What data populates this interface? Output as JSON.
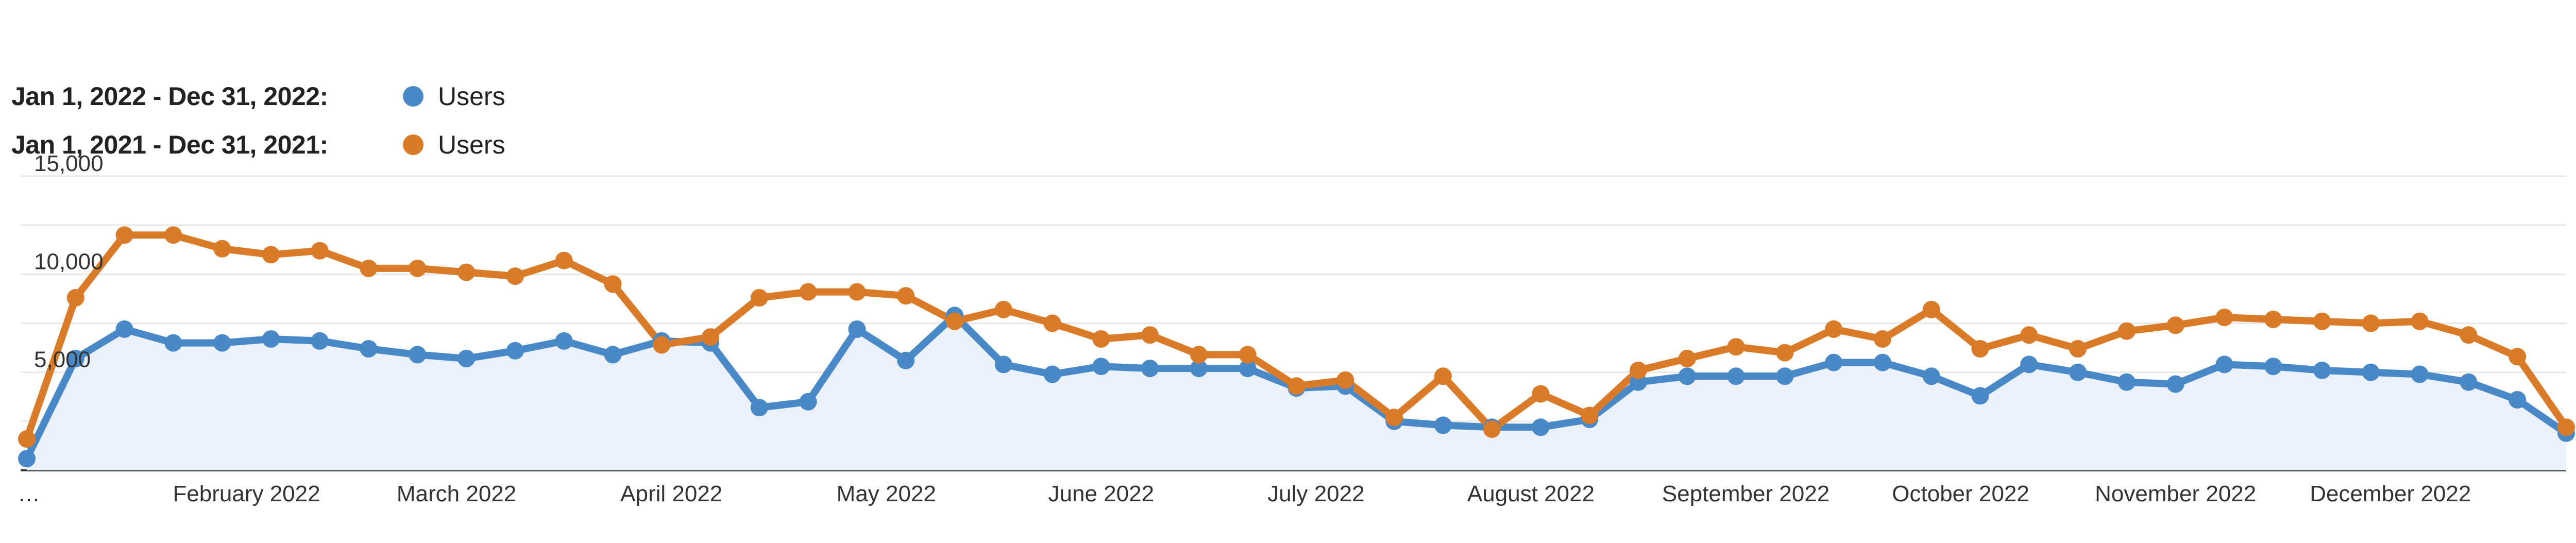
{
  "legend": [
    {
      "range": "Jan 1, 2022 - Dec 31, 2022:",
      "label": "Users",
      "color": "#4a89c8"
    },
    {
      "range": "Jan 1, 2021 - Dec 31, 2021:",
      "label": "Users",
      "color": "#d97b28"
    }
  ],
  "chart_data": {
    "type": "area",
    "title": "",
    "xlabel": "",
    "ylabel": "",
    "ylim": [
      0,
      15000
    ],
    "yticks": [
      {
        "value": 15000,
        "label": "15,000"
      },
      {
        "value": 10000,
        "label": "10,000"
      },
      {
        "value": 5000,
        "label": "5,000"
      }
    ],
    "xtick_labels": [
      {
        "index": 0,
        "label": "…"
      },
      {
        "index": 4.5,
        "label": "February 2022"
      },
      {
        "index": 8.8,
        "label": "March 2022"
      },
      {
        "index": 13.2,
        "label": "April 2022"
      },
      {
        "index": 17.6,
        "label": "May 2022"
      },
      {
        "index": 22,
        "label": "June 2022"
      },
      {
        "index": 26.4,
        "label": "July 2022"
      },
      {
        "index": 30.8,
        "label": "August 2022"
      },
      {
        "index": 35.2,
        "label": "September 2022"
      },
      {
        "index": 39.6,
        "label": "October 2022"
      },
      {
        "index": 44,
        "label": "November 2022"
      },
      {
        "index": 48.4,
        "label": "December 2022"
      }
    ],
    "grid": true,
    "legend_position": "top-left",
    "series": [
      {
        "name": "Users",
        "period": "Jan 1, 2022 - Dec 31, 2022",
        "color": "#4a89c8",
        "area_fill": "#eaf1fa",
        "values": [
          600,
          5700,
          7200,
          6500,
          6500,
          6700,
          6600,
          6200,
          5900,
          5700,
          6100,
          6600,
          5900,
          6600,
          6500,
          3200,
          3500,
          7200,
          5600,
          7900,
          5400,
          4900,
          5300,
          5200,
          5200,
          5200,
          4200,
          4300,
          2500,
          2300,
          2200,
          2200,
          2600,
          4500,
          4800,
          4800,
          4800,
          5500,
          5500,
          4800,
          3800,
          5400,
          5000,
          4500,
          4400,
          5400,
          5300,
          5100,
          5000,
          4900,
          4500,
          3600,
          1900
        ]
      },
      {
        "name": "Users",
        "period": "Jan 1, 2021 - Dec 31, 2021",
        "color": "#d97b28",
        "values": [
          1600,
          8800,
          12000,
          12000,
          11300,
          11000,
          11200,
          10300,
          10300,
          10100,
          9900,
          10700,
          9500,
          6400,
          6800,
          8800,
          9100,
          9100,
          8900,
          7600,
          8200,
          7500,
          6700,
          6900,
          5900,
          5900,
          4300,
          4600,
          2700,
          4800,
          2100,
          3900,
          2800,
          5100,
          5700,
          6300,
          6000,
          7200,
          6700,
          8200,
          6200,
          6900,
          6200,
          7100,
          7400,
          7800,
          7700,
          7600,
          7500,
          7600,
          6900,
          5800,
          2200
        ]
      }
    ]
  }
}
